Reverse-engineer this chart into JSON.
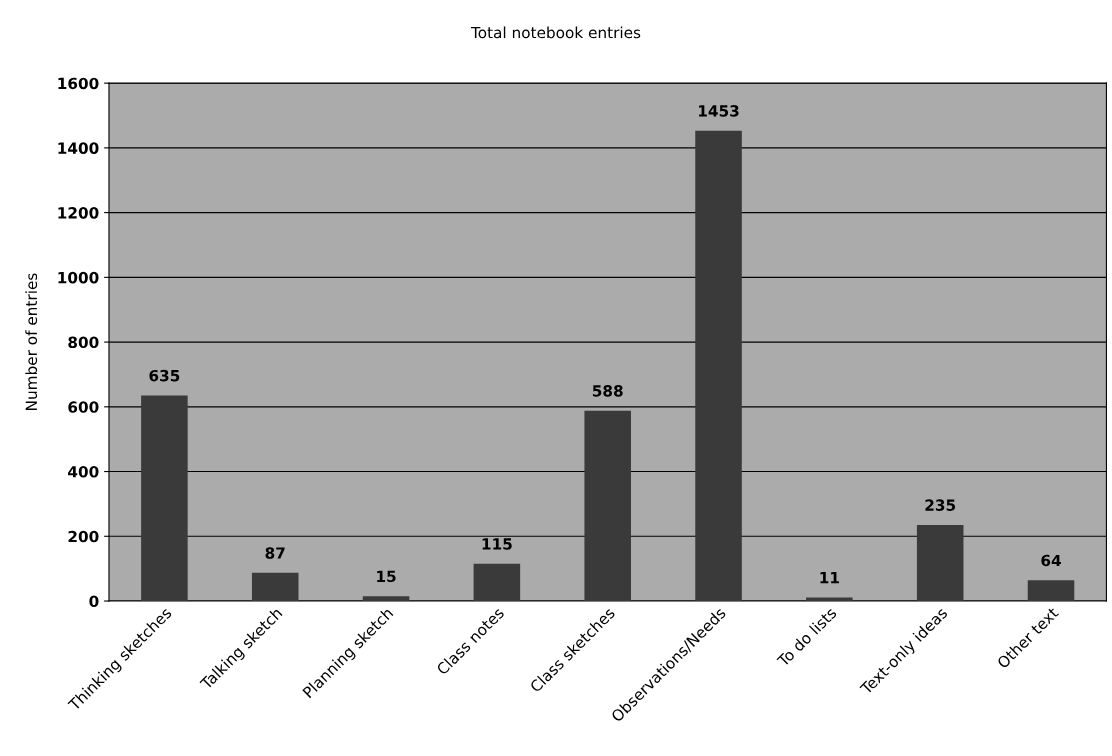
{
  "chart_data": {
    "type": "bar",
    "title": "Total notebook entries",
    "ylabel": "Number of entries",
    "categories": [
      "Thinking sketches",
      "Talking sketch",
      "Planning sketch",
      "Class notes",
      "Class sketches",
      "Observations/Needs",
      "To do lists",
      "Text-only ideas",
      "Other text"
    ],
    "values": [
      635,
      87,
      15,
      115,
      588,
      1453,
      11,
      235,
      64
    ],
    "color": "#3a3a3a",
    "ylim": [
      0,
      1600
    ],
    "yticks": [
      0,
      200,
      400,
      600,
      800,
      1000,
      1200,
      1400,
      1600
    ],
    "grid": "y",
    "data_labels": true
  }
}
